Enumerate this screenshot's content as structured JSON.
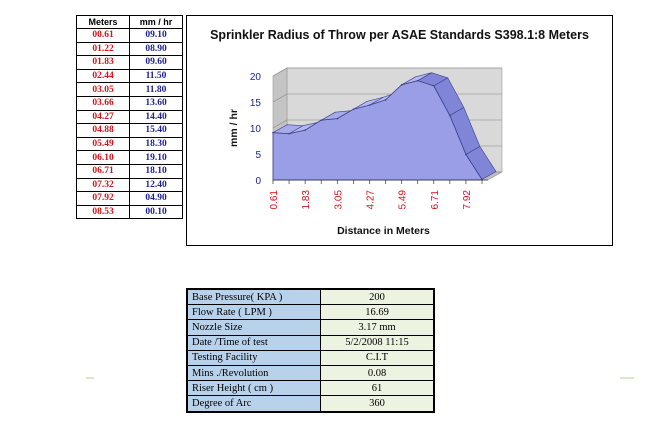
{
  "table": {
    "headers": [
      "Meters",
      "mm / hr"
    ],
    "rows": [
      [
        "00.61",
        "09.10"
      ],
      [
        "01.22",
        "08.90"
      ],
      [
        "01.83",
        "09.60"
      ],
      [
        "02.44",
        "11.50"
      ],
      [
        "03.05",
        "11.80"
      ],
      [
        "03.66",
        "13.60"
      ],
      [
        "04.27",
        "14.40"
      ],
      [
        "04.88",
        "15.40"
      ],
      [
        "05.49",
        "18.30"
      ],
      [
        "06.10",
        "19.10"
      ],
      [
        "06.71",
        "18.10"
      ],
      [
        "07.32",
        "12.40"
      ],
      [
        "07.92",
        "04.90"
      ],
      [
        "08.53",
        "00.10"
      ]
    ]
  },
  "chart_data": {
    "type": "area",
    "title": "Sprinkler Radius of Throw per ASAE Standards S398.1:8 Meters",
    "xlabel": "Distance in Meters",
    "ylabel": "mm / hr",
    "x": [
      "0.61",
      "1.22",
      "1.83",
      "2.44",
      "3.05",
      "3.66",
      "4.27",
      "4.88",
      "5.49",
      "6.10",
      "6.71",
      "7.32",
      "7.92",
      "8.53"
    ],
    "x_tick_labels": [
      "0.61",
      "1.83",
      "3.05",
      "4.27",
      "5.49",
      "6.71",
      "7.92"
    ],
    "y_ticks": [
      "0",
      "5",
      "10",
      "15",
      "20"
    ],
    "values": [
      9.1,
      8.9,
      9.6,
      11.5,
      11.8,
      13.6,
      14.4,
      15.4,
      18.3,
      19.1,
      18.1,
      12.4,
      4.9,
      0.1
    ],
    "ylim": [
      0,
      20
    ],
    "style": "3d",
    "colors": {
      "area": "#9a9ee6",
      "area_dark": "#6f73c4",
      "wall": "#d9d9d9",
      "axis_text": "#1b1f8f",
      "tick_red": "#d0141a"
    }
  },
  "parameters": [
    {
      "label": "Base Pressure( KPA  )",
      "value": "200"
    },
    {
      "label": "Flow Rate ( LPM )",
      "value": "16.69"
    },
    {
      "label": "Nozzle Size",
      "value": "3.17 mm"
    },
    {
      "label": "Date /Time of test",
      "value": "5/2/2008 11:15"
    },
    {
      "label": "Testing Facility",
      "value": "C.I.T"
    },
    {
      "label": "Mins ./Revolution",
      "value": "0.08"
    },
    {
      "label": "Riser Height ( cm )",
      "value": "61"
    },
    {
      "label": "Degree of Arc",
      "value": "360"
    }
  ]
}
